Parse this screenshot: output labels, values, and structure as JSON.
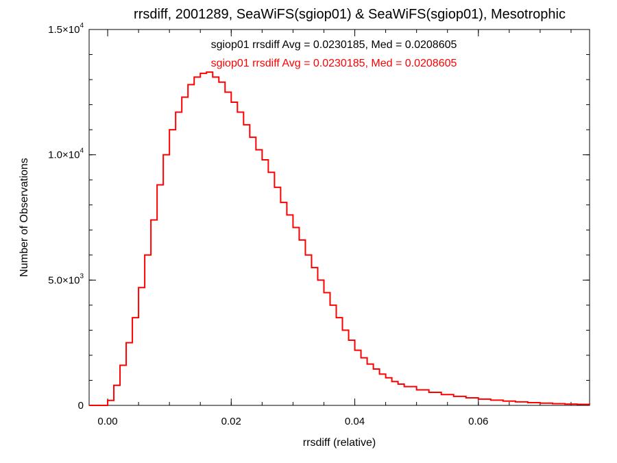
{
  "chart_data": {
    "type": "line",
    "step": true,
    "title": "rrsdiff, 2001289, SeaWiFS(sgiop01) & SeaWiFS(sgiop01), Mesotrophic",
    "xlabel": "rrsdiff (relative)",
    "ylabel": "Number of Observations",
    "xlim": [
      -0.003,
      0.078
    ],
    "ylim": [
      0,
      15000
    ],
    "x_ticks": [
      {
        "value": 0.0,
        "label": "0.00"
      },
      {
        "value": 0.02,
        "label": "0.02"
      },
      {
        "value": 0.04,
        "label": "0.04"
      },
      {
        "value": 0.06,
        "label": "0.06"
      }
    ],
    "y_ticks": [
      {
        "value": 0,
        "label": "0",
        "mant": "",
        "exp": ""
      },
      {
        "value": 5000,
        "label": "",
        "mant": "5.0×10",
        "exp": "3"
      },
      {
        "value": 10000,
        "label": "",
        "mant": "1.0×10",
        "exp": "4"
      },
      {
        "value": 15000,
        "label": "",
        "mant": "1.5×10",
        "exp": "4"
      }
    ],
    "annotations": [
      {
        "text": "sgiop01 rrsdiff Avg = 0.0230185, Med = 0.0208605",
        "color": "#000000"
      },
      {
        "text": "sgiop01 rrsdiff Avg = 0.0230185, Med = 0.0208605",
        "color": "#ff0000"
      }
    ],
    "series": [
      {
        "color": "#000000",
        "x": [
          -0.003,
          -0.002,
          -0.001,
          0.0,
          0.001,
          0.002,
          0.003,
          0.004,
          0.005,
          0.006,
          0.007,
          0.008,
          0.009,
          0.01,
          0.011,
          0.012,
          0.013,
          0.014,
          0.015,
          0.016,
          0.017,
          0.018,
          0.019,
          0.02,
          0.021,
          0.022,
          0.023,
          0.024,
          0.025,
          0.026,
          0.027,
          0.028,
          0.029,
          0.03,
          0.031,
          0.032,
          0.033,
          0.034,
          0.035,
          0.036,
          0.037,
          0.038,
          0.039,
          0.04,
          0.041,
          0.042,
          0.043,
          0.044,
          0.045,
          0.046,
          0.047,
          0.048,
          0.05,
          0.052,
          0.054,
          0.056,
          0.058,
          0.06,
          0.062,
          0.064,
          0.066,
          0.068,
          0.07,
          0.072,
          0.074,
          0.076,
          0.078
        ],
        "y": [
          0,
          0,
          0,
          200,
          800,
          1600,
          2500,
          3500,
          4700,
          6000,
          7400,
          8800,
          10000,
          11000,
          11700,
          12300,
          12800,
          13100,
          13250,
          13300,
          13100,
          12900,
          12500,
          12100,
          11700,
          11200,
          10700,
          10200,
          9800,
          9300,
          8700,
          8100,
          7600,
          7100,
          6600,
          6000,
          5500,
          5000,
          4500,
          4000,
          3500,
          3000,
          2600,
          2200,
          1900,
          1650,
          1450,
          1250,
          1100,
          950,
          850,
          750,
          620,
          520,
          430,
          360,
          300,
          250,
          210,
          170,
          140,
          110,
          90,
          70,
          50,
          40,
          30
        ]
      },
      {
        "color": "#ff0000",
        "x": [
          -0.003,
          -0.002,
          -0.001,
          0.0,
          0.001,
          0.002,
          0.003,
          0.004,
          0.005,
          0.006,
          0.007,
          0.008,
          0.009,
          0.01,
          0.011,
          0.012,
          0.013,
          0.014,
          0.015,
          0.016,
          0.017,
          0.018,
          0.019,
          0.02,
          0.021,
          0.022,
          0.023,
          0.024,
          0.025,
          0.026,
          0.027,
          0.028,
          0.029,
          0.03,
          0.031,
          0.032,
          0.033,
          0.034,
          0.035,
          0.036,
          0.037,
          0.038,
          0.039,
          0.04,
          0.041,
          0.042,
          0.043,
          0.044,
          0.045,
          0.046,
          0.047,
          0.048,
          0.05,
          0.052,
          0.054,
          0.056,
          0.058,
          0.06,
          0.062,
          0.064,
          0.066,
          0.068,
          0.07,
          0.072,
          0.074,
          0.076,
          0.078
        ],
        "y": [
          0,
          0,
          0,
          200,
          800,
          1600,
          2500,
          3500,
          4700,
          6000,
          7400,
          8800,
          10000,
          11000,
          11700,
          12300,
          12800,
          13100,
          13250,
          13300,
          13100,
          12900,
          12500,
          12100,
          11700,
          11200,
          10700,
          10200,
          9800,
          9300,
          8700,
          8100,
          7600,
          7100,
          6600,
          6000,
          5500,
          5000,
          4500,
          4000,
          3500,
          3000,
          2600,
          2200,
          1900,
          1650,
          1450,
          1250,
          1100,
          950,
          850,
          750,
          620,
          520,
          430,
          360,
          300,
          250,
          210,
          170,
          140,
          110,
          90,
          70,
          50,
          40,
          30
        ]
      }
    ]
  }
}
